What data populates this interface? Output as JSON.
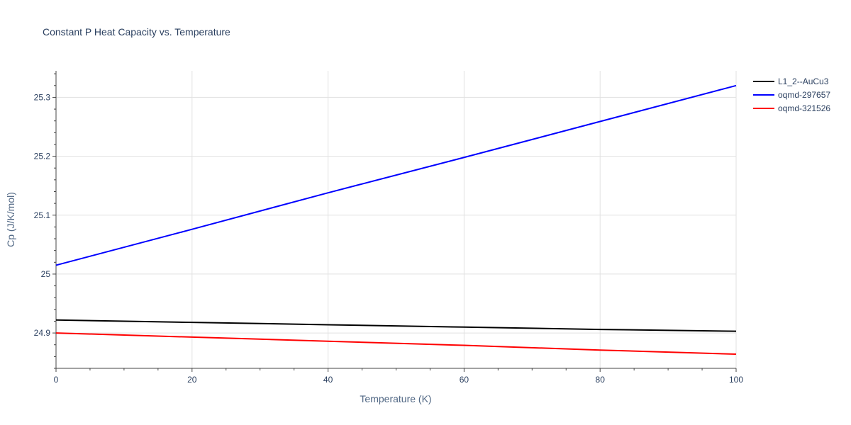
{
  "chart_data": {
    "type": "line",
    "title": "Constant P Heat Capacity vs. Temperature",
    "xlabel": "Temperature (K)",
    "ylabel": "Cp (J/K/mol)",
    "xlim": [
      0,
      100
    ],
    "ylim": [
      24.84,
      25.345
    ],
    "x_ticks": [
      0,
      20,
      40,
      60,
      80,
      100
    ],
    "y_ticks": [
      24.9,
      25,
      25.1,
      25.2,
      25.3
    ],
    "x_tick_labels": [
      "0",
      "20",
      "40",
      "60",
      "80",
      "100"
    ],
    "y_tick_labels": [
      "24.9",
      "25",
      "25.1",
      "25.2",
      "25.3"
    ],
    "grid": true,
    "legend_position": "top-right",
    "series": [
      {
        "name": "L1_2--AuCu3",
        "color": "#000000",
        "x": [
          0,
          20,
          40,
          60,
          80,
          100
        ],
        "values": [
          24.922,
          24.918,
          24.914,
          24.91,
          24.906,
          24.903
        ]
      },
      {
        "name": "oqmd-297657",
        "color": "#0000ff",
        "x": [
          0,
          20,
          40,
          60,
          80,
          100
        ],
        "values": [
          25.015,
          25.076,
          25.138,
          25.198,
          25.259,
          25.32
        ]
      },
      {
        "name": "oqmd-321526",
        "color": "#ff0000",
        "x": [
          0,
          20,
          40,
          60,
          80,
          100
        ],
        "values": [
          24.9,
          24.893,
          24.886,
          24.879,
          24.871,
          24.864
        ]
      }
    ]
  }
}
